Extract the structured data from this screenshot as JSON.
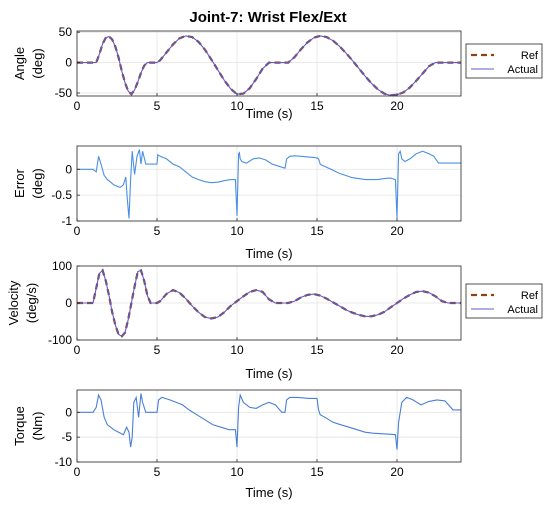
{
  "figure": {
    "title": "Joint-7: Wrist Flex/Ext"
  },
  "colors": {
    "ref": "#8b4513",
    "actual": "#5b5bd6",
    "error": "#4a90e2",
    "torque": "#4a7fd6"
  },
  "chart_data": [
    {
      "id": "angle",
      "type": "line",
      "title": "Joint-7: Wrist Flex/Ext",
      "xlabel": "Time (s)",
      "ylabel": [
        "Angle",
        "(deg)"
      ],
      "xlim": [
        0,
        24
      ],
      "ylim": [
        -55,
        52
      ],
      "xticks": [
        0,
        5,
        10,
        15,
        20
      ],
      "yticks": [
        -50,
        0,
        50
      ],
      "legend": {
        "position": "right",
        "entries": [
          "Ref",
          "Actual"
        ]
      },
      "series": [
        {
          "name": "Ref",
          "style": "dashed",
          "x": [
            0,
            1.2,
            1.4,
            1.6,
            1.8,
            2.0,
            2.2,
            2.4,
            2.6,
            2.8,
            3.0,
            3.2,
            3.4,
            3.6,
            3.8,
            4.0,
            4.2,
            4.4,
            4.6,
            4.8,
            5.0,
            5.2,
            5.6,
            6.0,
            6.4,
            6.8,
            7.2,
            7.6,
            8.0,
            8.4,
            8.8,
            9.2,
            9.6,
            10.0,
            10.4,
            10.8,
            11.2,
            11.6,
            12.0,
            12.4,
            13.2,
            13.6,
            14.0,
            14.4,
            14.8,
            15.2,
            15.6,
            16.0,
            16.4,
            16.8,
            17.2,
            17.6,
            18.0,
            18.4,
            18.8,
            19.2,
            19.6,
            20.0,
            20.4,
            20.8,
            21.2,
            21.6,
            22.0,
            22.4,
            22.8,
            23.2,
            23.6,
            24.0
          ],
          "y": [
            0,
            0,
            14,
            31,
            41,
            43,
            38,
            26,
            8,
            -14,
            -33,
            -47,
            -52,
            -45,
            -32,
            -17,
            -5,
            0,
            0,
            0,
            0,
            4,
            17,
            30,
            40,
            44,
            42,
            34,
            21,
            5,
            -12,
            -29,
            -43,
            -52,
            -51,
            -42,
            -27,
            -10,
            0,
            0,
            0,
            9,
            22,
            33,
            41,
            44,
            42,
            36,
            27,
            16,
            4,
            -9,
            -22,
            -34,
            -44,
            -51,
            -54,
            -53,
            -49,
            -41,
            -30,
            -18,
            -6,
            0,
            0,
            0,
            0,
            0
          ]
        },
        {
          "name": "Actual",
          "style": "solid",
          "x": [
            0,
            1.2,
            1.4,
            1.6,
            1.8,
            2.0,
            2.2,
            2.4,
            2.6,
            2.8,
            3.0,
            3.2,
            3.4,
            3.6,
            3.8,
            4.0,
            4.2,
            4.4,
            4.6,
            4.8,
            5.0,
            5.2,
            5.6,
            6.0,
            6.4,
            6.8,
            7.2,
            7.6,
            8.0,
            8.4,
            8.8,
            9.2,
            9.6,
            10.0,
            10.4,
            10.8,
            11.2,
            11.6,
            12.0,
            12.4,
            13.2,
            13.6,
            14.0,
            14.4,
            14.8,
            15.2,
            15.6,
            16.0,
            16.4,
            16.8,
            17.2,
            17.6,
            18.0,
            18.4,
            18.8,
            19.2,
            19.6,
            20.0,
            20.4,
            20.8,
            21.2,
            21.6,
            22.0,
            22.4,
            22.8,
            23.2,
            23.6,
            24.0
          ],
          "y": [
            0,
            0,
            14,
            31,
            41,
            43,
            38,
            26,
            8,
            -14,
            -33,
            -47,
            -52,
            -45,
            -32,
            -17,
            -5,
            0,
            0,
            0,
            0,
            4,
            17,
            30,
            40,
            44,
            42,
            34,
            21,
            5,
            -12,
            -29,
            -43,
            -52,
            -51,
            -42,
            -27,
            -10,
            0,
            0,
            0,
            9,
            22,
            33,
            41,
            44,
            42,
            36,
            27,
            16,
            4,
            -9,
            -22,
            -34,
            -44,
            -51,
            -54,
            -53,
            -49,
            -41,
            -30,
            -18,
            -6,
            0,
            0,
            0,
            0,
            0
          ]
        }
      ]
    },
    {
      "id": "error",
      "type": "line",
      "xlabel": "Time (s)",
      "ylabel": [
        "Error",
        "(deg)"
      ],
      "xlim": [
        0,
        24
      ],
      "ylim": [
        -1,
        0.45
      ],
      "xticks": [
        0,
        5,
        10,
        15,
        20
      ],
      "yticks": [
        -1,
        -0.5,
        0
      ],
      "ytick_labels": [
        "-1",
        "-0.5",
        "0"
      ],
      "series": [
        {
          "name": "Error",
          "style": "solid",
          "x": [
            0,
            1.0,
            1.2,
            1.35,
            1.5,
            1.7,
            1.9,
            2.1,
            2.3,
            2.5,
            2.7,
            2.9,
            3.05,
            3.15,
            3.25,
            3.35,
            3.45,
            3.5,
            3.6,
            3.75,
            3.9,
            4.0,
            4.1,
            4.3,
            4.6,
            5.0,
            5.05,
            5.2,
            5.6,
            6.0,
            6.4,
            6.8,
            7.2,
            7.6,
            8.0,
            8.4,
            8.8,
            9.2,
            9.6,
            9.9,
            10.0,
            10.1,
            10.15,
            10.2,
            10.3,
            10.6,
            11.0,
            11.4,
            11.8,
            12.2,
            12.6,
            13.0,
            13.1,
            13.3,
            13.6,
            14.0,
            14.4,
            14.8,
            15.0,
            15.1,
            15.2,
            15.3,
            15.6,
            16.0,
            16.4,
            16.8,
            17.2,
            17.6,
            18.0,
            18.4,
            18.8,
            19.2,
            19.6,
            19.9,
            20.0,
            20.1,
            20.2,
            20.3,
            20.5,
            20.8,
            21.2,
            21.6,
            22.0,
            22.3,
            22.6,
            23.0,
            23.5,
            24.0
          ],
          "y": [
            0,
            0,
            -0.05,
            0.25,
            0.1,
            -0.12,
            -0.2,
            -0.25,
            -0.3,
            -0.33,
            -0.35,
            -0.3,
            -0.15,
            -0.6,
            -0.95,
            -0.2,
            0.35,
            0.2,
            -0.1,
            0.25,
            0.38,
            0.1,
            0.35,
            0.1,
            0.1,
            0.1,
            0.28,
            0.25,
            0.2,
            0.1,
            0.05,
            -0.05,
            -0.15,
            -0.2,
            -0.24,
            -0.26,
            -0.25,
            -0.22,
            -0.2,
            -0.2,
            -0.9,
            0.3,
            0.32,
            0.2,
            0.15,
            0.12,
            0.2,
            0.22,
            0.18,
            0.1,
            0.06,
            0.02,
            0.2,
            0.25,
            0.26,
            0.25,
            0.24,
            0.23,
            0.22,
            0.2,
            0.1,
            0.08,
            0.04,
            -0.02,
            -0.08,
            -0.12,
            -0.16,
            -0.18,
            -0.2,
            -0.2,
            -0.2,
            -0.18,
            -0.17,
            -0.2,
            -0.95,
            0.3,
            0.35,
            0.2,
            0.15,
            0.2,
            0.3,
            0.35,
            0.3,
            0.25,
            0.12,
            0.12,
            0.12,
            0.12
          ]
        }
      ]
    },
    {
      "id": "velocity",
      "type": "line",
      "xlabel": "Time (s)",
      "ylabel": [
        "Velocity",
        "(deg/s)"
      ],
      "xlim": [
        0,
        24
      ],
      "ylim": [
        -100,
        100
      ],
      "xticks": [
        0,
        5,
        10,
        15,
        20
      ],
      "yticks": [
        -100,
        0,
        100
      ],
      "legend": {
        "position": "right",
        "entries": [
          "Ref",
          "Actual"
        ]
      },
      "series": [
        {
          "name": "Ref",
          "style": "dashed",
          "x": [
            0,
            1.0,
            1.2,
            1.4,
            1.6,
            1.8,
            2.0,
            2.2,
            2.4,
            2.6,
            2.8,
            3.0,
            3.2,
            3.4,
            3.6,
            3.8,
            4.0,
            4.2,
            4.4,
            4.6,
            5.0,
            5.2,
            5.6,
            6.0,
            6.4,
            6.8,
            7.2,
            7.6,
            8.0,
            8.4,
            8.8,
            9.2,
            9.6,
            10.0,
            10.4,
            10.8,
            11.2,
            11.6,
            12.0,
            12.4,
            13.2,
            13.6,
            14.0,
            14.4,
            14.8,
            15.2,
            15.6,
            16.0,
            16.4,
            16.8,
            17.2,
            17.6,
            18.0,
            18.4,
            18.8,
            19.2,
            19.6,
            20.0,
            20.4,
            20.8,
            21.2,
            21.6,
            22.0,
            22.4,
            22.8,
            23.2,
            23.6,
            24.0
          ],
          "y": [
            0,
            0,
            40,
            80,
            88,
            60,
            20,
            -25,
            -60,
            -85,
            -90,
            -80,
            -45,
            0,
            45,
            85,
            88,
            60,
            20,
            0,
            0,
            5,
            25,
            35,
            28,
            12,
            -8,
            -25,
            -38,
            -42,
            -38,
            -25,
            -8,
            5,
            18,
            30,
            35,
            30,
            10,
            0,
            0,
            5,
            15,
            22,
            24,
            20,
            12,
            2,
            -8,
            -18,
            -26,
            -32,
            -36,
            -36,
            -32,
            -24,
            -12,
            0,
            12,
            22,
            30,
            32,
            28,
            18,
            5,
            0,
            0,
            0
          ]
        },
        {
          "name": "Actual",
          "style": "solid",
          "x": [
            0,
            1.0,
            1.2,
            1.4,
            1.6,
            1.8,
            2.0,
            2.2,
            2.4,
            2.6,
            2.8,
            3.0,
            3.2,
            3.4,
            3.6,
            3.8,
            4.0,
            4.2,
            4.4,
            4.6,
            5.0,
            5.2,
            5.6,
            6.0,
            6.4,
            6.8,
            7.2,
            7.6,
            8.0,
            8.4,
            8.8,
            9.2,
            9.6,
            10.0,
            10.4,
            10.8,
            11.2,
            11.6,
            12.0,
            12.4,
            13.2,
            13.6,
            14.0,
            14.4,
            14.8,
            15.2,
            15.6,
            16.0,
            16.4,
            16.8,
            17.2,
            17.6,
            18.0,
            18.4,
            18.8,
            19.2,
            19.6,
            20.0,
            20.4,
            20.8,
            21.2,
            21.6,
            22.0,
            22.4,
            22.8,
            23.2,
            23.6,
            24.0
          ],
          "y": [
            0,
            0,
            40,
            80,
            88,
            60,
            20,
            -25,
            -60,
            -85,
            -90,
            -80,
            -45,
            0,
            45,
            85,
            88,
            60,
            20,
            0,
            0,
            5,
            25,
            35,
            28,
            12,
            -8,
            -25,
            -38,
            -42,
            -38,
            -25,
            -8,
            5,
            18,
            30,
            35,
            30,
            10,
            0,
            0,
            5,
            15,
            22,
            24,
            20,
            12,
            2,
            -8,
            -18,
            -26,
            -32,
            -36,
            -36,
            -32,
            -24,
            -12,
            0,
            12,
            22,
            30,
            32,
            28,
            18,
            5,
            0,
            0,
            0
          ]
        }
      ]
    },
    {
      "id": "torque",
      "type": "line",
      "xlabel": "Time (s)",
      "ylabel": [
        "Torque",
        "(Nm)"
      ],
      "xlim": [
        0,
        24
      ],
      "ylim": [
        -10,
        4.5
      ],
      "xticks": [
        0,
        5,
        10,
        15,
        20
      ],
      "yticks": [
        -10,
        -5,
        0
      ],
      "series": [
        {
          "name": "Torque",
          "style": "solid",
          "x": [
            0,
            1.0,
            1.2,
            1.35,
            1.5,
            1.7,
            1.9,
            2.1,
            2.3,
            2.6,
            2.9,
            3.1,
            3.25,
            3.35,
            3.45,
            3.55,
            3.7,
            3.85,
            4.0,
            4.1,
            4.3,
            4.6,
            5.0,
            5.1,
            5.3,
            5.8,
            6.2,
            6.6,
            7.0,
            7.5,
            8.0,
            8.5,
            9.0,
            9.5,
            9.9,
            10.0,
            10.1,
            10.2,
            10.4,
            10.8,
            11.2,
            11.6,
            12.0,
            12.4,
            12.8,
            13.0,
            13.1,
            13.3,
            13.8,
            14.5,
            15.0,
            15.1,
            15.2,
            15.5,
            16.0,
            16.5,
            17.0,
            17.5,
            18.0,
            18.5,
            19.0,
            19.5,
            19.9,
            20.0,
            20.1,
            20.3,
            20.6,
            21.0,
            21.5,
            22.0,
            22.5,
            23.0,
            23.5,
            24.0
          ],
          "y": [
            0,
            0,
            1,
            3.5,
            2.5,
            -1,
            -2.5,
            -3,
            -3.5,
            -4,
            -4.5,
            -3,
            -4,
            -7,
            -5,
            2,
            3,
            -1,
            3.8,
            2,
            0,
            0,
            0,
            2.5,
            3,
            2.5,
            2,
            1.5,
            0.5,
            -0.5,
            -1.5,
            -2.5,
            -3,
            -3.5,
            -3.5,
            -7,
            1,
            3.5,
            2,
            1,
            0.8,
            1.5,
            2,
            1.5,
            0,
            0,
            2.5,
            3,
            3,
            2.8,
            2.8,
            0.5,
            -0.5,
            -1,
            -2,
            -2.5,
            -3,
            -3.5,
            -4,
            -4.2,
            -4.3,
            -4.4,
            -4.5,
            -7.5,
            -2,
            2,
            3,
            2.5,
            1.5,
            2.2,
            2.5,
            2.3,
            0.5,
            0.5
          ]
        }
      ]
    }
  ]
}
